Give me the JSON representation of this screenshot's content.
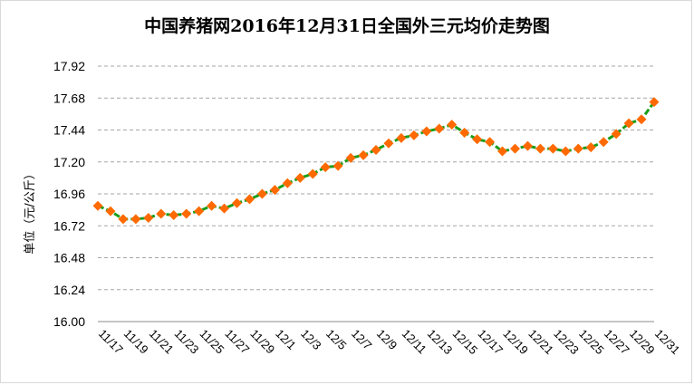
{
  "chart_data": {
    "type": "line",
    "title": "中国养猪网2016年12月31日全国外三元均价走势图",
    "ylabel": "单位（元/公斤）",
    "xlabel": "",
    "ylim": [
      16.0,
      17.92
    ],
    "yticks": [
      "16.00",
      "16.24",
      "16.48",
      "16.72",
      "16.96",
      "17.20",
      "17.44",
      "17.68",
      "17.92"
    ],
    "grid": "horizontal dashed",
    "x_tick_labels": [
      "11/17",
      "11/19",
      "11/21",
      "11/23",
      "11/25",
      "11/27",
      "11/29",
      "12/1",
      "12/3",
      "12/5",
      "12/7",
      "12/9",
      "12/11",
      "12/13",
      "12/15",
      "12/17",
      "12/19",
      "12/21",
      "12/23",
      "12/25",
      "12/27",
      "12/29",
      "12/31"
    ],
    "x": [
      "11/17",
      "11/18",
      "11/19",
      "11/20",
      "11/21",
      "11/22",
      "11/23",
      "11/24",
      "11/25",
      "11/26",
      "11/27",
      "11/28",
      "11/29",
      "11/30",
      "12/1",
      "12/2",
      "12/3",
      "12/4",
      "12/5",
      "12/6",
      "12/7",
      "12/8",
      "12/9",
      "12/10",
      "12/11",
      "12/12",
      "12/13",
      "12/14",
      "12/15",
      "12/16",
      "12/17",
      "12/18",
      "12/19",
      "12/20",
      "12/21",
      "12/22",
      "12/23",
      "12/24",
      "12/25",
      "12/26",
      "12/27",
      "12/28",
      "12/29",
      "12/30",
      "12/31"
    ],
    "series": [
      {
        "values": [
          16.87,
          16.83,
          16.77,
          16.77,
          16.78,
          16.81,
          16.8,
          16.81,
          16.83,
          16.87,
          16.85,
          16.89,
          16.92,
          16.96,
          16.99,
          17.04,
          17.08,
          17.11,
          17.16,
          17.17,
          17.23,
          17.25,
          17.29,
          17.34,
          17.38,
          17.4,
          17.43,
          17.45,
          17.48,
          17.42,
          17.37,
          17.35,
          17.28,
          17.3,
          17.32,
          17.3,
          17.3,
          17.28,
          17.3,
          17.31,
          17.35,
          17.41,
          17.49,
          17.52,
          17.65
        ],
        "line_color": "#1a9e1a",
        "marker_color": "#ff6a00"
      }
    ]
  }
}
